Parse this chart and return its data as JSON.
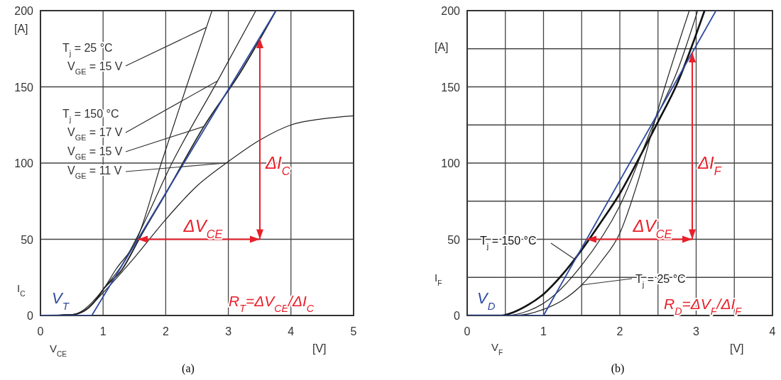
{
  "chart_data": [
    {
      "type": "line",
      "xlabel": "V$_{CE}$",
      "ylabel": "I$_{C}$",
      "xlim": [
        0,
        5
      ],
      "xticks": [
        0,
        1,
        2,
        3,
        4,
        5
      ],
      "ylim": [
        0,
        200
      ],
      "yticks": [
        0,
        50,
        100,
        150,
        200
      ],
      "grid": true,
      "x": [
        0,
        0.5,
        0.7,
        0.9,
        1,
        1.2,
        1.54,
        1.93,
        2.33,
        2.74
      ],
      "series": [
        {
          "color": "#222222",
          "values": [
            0,
            0.5,
            4,
            12,
            17,
            30,
            50,
            100,
            150,
            200
          ]
        },
        {
          "color": "#222222",
          "x": [
            0,
            0.5,
            0.7,
            0.9,
            1,
            1.3,
            1.55,
            2.1,
            2.83,
            3.44
          ],
          "values": [
            0,
            0.5,
            3,
            11,
            17,
            33,
            52,
            100,
            154,
            200
          ]
        },
        {
          "color": "#222222",
          "x": [
            0,
            0.5,
            0.7,
            0.9,
            1,
            1.3,
            1.6,
            2,
            2.61,
            3.2,
            3.76
          ],
          "values": [
            0,
            0.5,
            3,
            11,
            17,
            30,
            52,
            80,
            124,
            160,
            200
          ]
        },
        {
          "color": "#222222",
          "x": [
            0,
            0.5,
            0.7,
            1,
            1.5,
            2,
            2.5,
            3,
            3.5,
            4,
            4.5,
            5
          ],
          "values": [
            0,
            0.5,
            3,
            15,
            38,
            63,
            85,
            101,
            115,
            125,
            129,
            131
          ]
        },
        {
          "name": "V$_{T}$",
          "color": "#2e4aa0",
          "x": [
            0,
            0.82,
            3.76
          ],
          "values": [
            0,
            0,
            200
          ]
        }
      ],
      "annotations": [
        "T$_{j}$ = 25 °C",
        {
          "text": "V$_{GE}$ = 15 V",
          "x": 2.65,
          "y": 189
        },
        "T$_{j}$ = 150 °C",
        {
          "text": "V$_{GE}$ = 17 V",
          "x": 2.83,
          "y": 154
        },
        {
          "text": "V$_{GE}$ = 15 V",
          "x": 2.61,
          "y": 124
        },
        {
          "text": "V$_{GE}$ = 11 V",
          "x": 2.95,
          "y": 100
        },
        "ΔV$_{CE}$",
        "ΔI$_{C}$",
        "R$_{T}$=ΔV$_{CE}$/ΔI$_{C}$",
        "[A]",
        "[V]",
        "(a)"
      ]
    },
    {
      "type": "line",
      "xlabel": "V$_{F}$",
      "ylabel": "I$_{F}$",
      "xlim": [
        0,
        4
      ],
      "xticks": [
        0,
        {
          "value": 0.5,
          "label": null
        },
        1,
        {
          "value": 1.5,
          "label": null
        },
        2,
        {
          "value": 2.5,
          "label": null
        },
        3,
        {
          "value": 3.5,
          "label": null
        },
        4
      ],
      "ylim": [
        0,
        200
      ],
      "yticks": [
        0,
        {
          "value": 25,
          "label": null
        },
        50,
        {
          "value": 75,
          "label": null
        },
        100,
        {
          "value": 125,
          "label": null
        },
        150,
        {
          "value": 175,
          "label": null
        },
        200
      ],
      "grid": true,
      "x": [
        0,
        0.45,
        0.6,
        0.8,
        1,
        1.25,
        1.5,
        1.75,
        2,
        2.25,
        2.5,
        2.75,
        3.11
      ],
      "series": [
        {
          "name": "T$_{j}$ = 150 °C",
          "color": "#111111",
          "values": [
            0,
            0,
            2,
            7,
            14,
            27,
            43,
            61,
            80,
            103,
            127,
            152,
            200
          ]
        },
        {
          "name": "T$_{j}$ = 25 °C",
          "color": "#222222",
          "x": [
            0,
            0.6,
            0.8,
            1,
            1.25,
            1.5,
            1.75,
            2,
            2.25,
            2.5,
            2.91
          ],
          "values": [
            0,
            0,
            1,
            4,
            10,
            20,
            35,
            54,
            90,
            135,
            200
          ]
        },
        {
          "color": "#222222",
          "x": [
            0,
            0.5,
            0.8,
            1,
            1.5,
            2,
            2.46,
            2.75,
            3.02
          ],
          "values": [
            0,
            0,
            3,
            8,
            33,
            72,
            128,
            160,
            200
          ]
        },
        {
          "name": "V$_{D}$",
          "color": "#2e4aa0",
          "x": [
            0,
            1,
            3.26
          ],
          "values": [
            0,
            0,
            200
          ]
        }
      ],
      "annotations": [
        "R$_{D}$=ΔV$_{F}$/ΔI$_{F}$",
        "ΔV$_{CE}$",
        "ΔI$_{F}$",
        "[A]",
        "[V]",
        "(b)"
      ]
    }
  ]
}
